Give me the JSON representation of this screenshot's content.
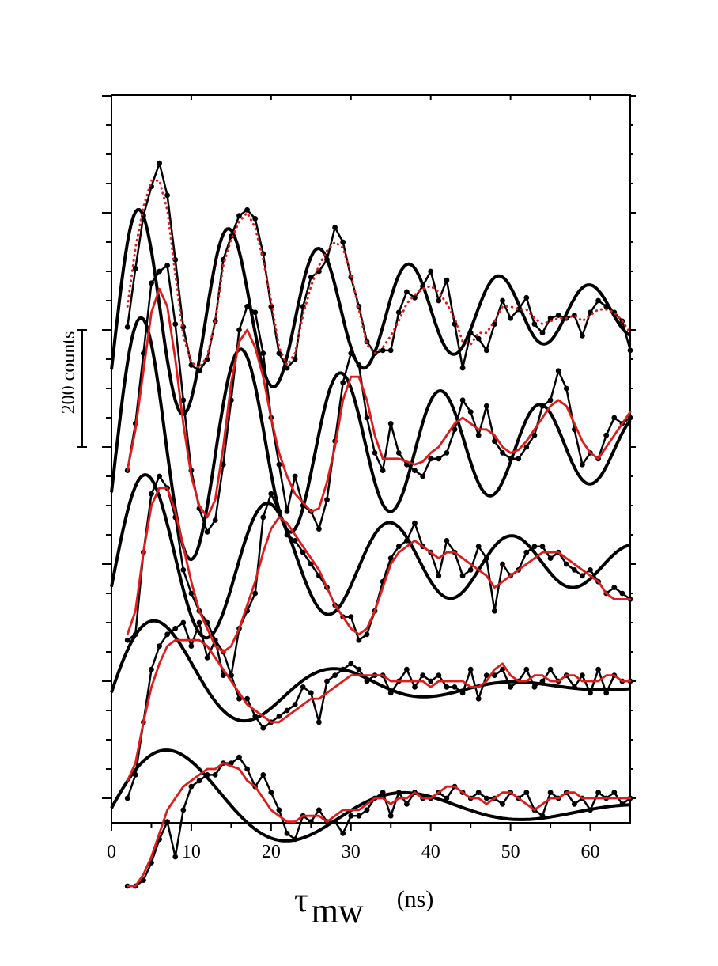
{
  "chart_data": {
    "type": "line",
    "xlabel": {
      "symbol": "τ",
      "subscript": "mw",
      "unit": "(ns)"
    },
    "xlim": [
      0,
      65
    ],
    "x_ticks": [
      0,
      10,
      20,
      30,
      40,
      50,
      60
    ],
    "scale_bar": {
      "label": "200 counts",
      "value": 200
    },
    "offset_between_traces": 200,
    "y_minor_tick_spacing": 50,
    "grid": false,
    "legend": "none",
    "colors": {
      "data": "#000000",
      "smoothed": "#e01b1b",
      "fit": "#000000"
    },
    "series": [
      {
        "trace": 1,
        "baseline": 800,
        "smoothed_style": "dotted",
        "data_x": [
          2,
          3,
          4,
          5,
          6,
          7,
          8,
          9,
          10,
          11,
          12,
          13,
          14,
          15,
          16,
          17,
          18,
          19,
          20,
          21,
          22,
          23,
          24,
          25,
          26,
          27,
          28,
          29,
          30,
          31,
          32,
          33,
          34,
          35,
          36,
          37,
          38,
          39,
          40,
          41,
          42,
          43,
          44,
          45,
          46,
          47,
          48,
          49,
          50,
          51,
          52,
          53,
          54,
          55,
          56,
          57,
          58,
          59,
          60,
          61,
          62,
          63,
          64,
          65
        ],
        "data_y": [
          5,
          105,
          195,
          245,
          285,
          230,
          120,
          5,
          -60,
          -70,
          -50,
          15,
          120,
          160,
          195,
          205,
          190,
          130,
          40,
          -40,
          -65,
          -50,
          40,
          90,
          100,
          120,
          175,
          150,
          90,
          40,
          -20,
          -40,
          -35,
          -35,
          30,
          65,
          55,
          75,
          100,
          50,
          85,
          10,
          -65,
          -5,
          -15,
          -35,
          10,
          50,
          20,
          35,
          55,
          10,
          -5,
          20,
          25,
          20,
          25,
          -10,
          30,
          50,
          40,
          30,
          15,
          -35
        ],
        "smoothed_y": [
          40,
          140,
          210,
          255,
          255,
          205,
          95,
          -10,
          -55,
          -65,
          -45,
          15,
          110,
          155,
          185,
          200,
          175,
          120,
          50,
          -30,
          -60,
          -40,
          25,
          75,
          110,
          135,
          150,
          140,
          95,
          35,
          -25,
          -40,
          -30,
          -10,
          15,
          45,
          60,
          70,
          75,
          65,
          45,
          20,
          -20,
          -25,
          -5,
          -5,
          15,
          40,
          40,
          35,
          35,
          20,
          10,
          15,
          20,
          20,
          25,
          15,
          25,
          35,
          35,
          30,
          15,
          -5
        ]
      },
      {
        "trace": 2,
        "baseline": 600,
        "smoothed_style": "solid",
        "data_x": [
          2,
          3,
          4,
          5,
          6,
          7,
          8,
          9,
          10,
          11,
          12,
          13,
          14,
          15,
          16,
          17,
          18,
          19,
          20,
          21,
          22,
          23,
          24,
          25,
          26,
          27,
          28,
          29,
          30,
          31,
          32,
          33,
          34,
          35,
          36,
          37,
          38,
          39,
          40,
          41,
          42,
          43,
          44,
          45,
          46,
          47,
          48,
          49,
          50,
          51,
          52,
          53,
          54,
          55,
          56,
          57,
          58,
          59,
          60,
          61,
          62,
          63,
          64,
          65
        ],
        "data_y": [
          -40,
          40,
          160,
          280,
          300,
          310,
          210,
          80,
          -40,
          -105,
          -145,
          -125,
          -30,
          80,
          200,
          240,
          230,
          160,
          50,
          -30,
          -110,
          -50,
          -100,
          -110,
          -140,
          -90,
          10,
          110,
          160,
          140,
          50,
          -10,
          -40,
          40,
          -10,
          -30,
          -40,
          -50,
          -20,
          -20,
          -10,
          30,
          80,
          60,
          20,
          70,
          10,
          -10,
          -20,
          -20,
          0,
          20,
          70,
          80,
          130,
          100,
          30,
          -30,
          -10,
          -20,
          20,
          50,
          40,
          50
        ],
        "smoothed_y": [
          -40,
          30,
          130,
          230,
          270,
          240,
          150,
          40,
          -50,
          -100,
          -120,
          -90,
          0,
          110,
          180,
          200,
          170,
          120,
          50,
          -10,
          -50,
          -80,
          -95,
          -110,
          -105,
          -60,
          0,
          80,
          120,
          120,
          80,
          20,
          -20,
          -20,
          -20,
          -25,
          -30,
          -25,
          -10,
          0,
          20,
          40,
          50,
          40,
          30,
          30,
          20,
          0,
          -10,
          -5,
          10,
          30,
          50,
          70,
          80,
          70,
          40,
          10,
          -10,
          -20,
          0,
          20,
          40,
          60
        ]
      },
      {
        "trace": 3,
        "baseline": 400,
        "smoothed_style": "solid",
        "data_x": [
          2,
          3,
          4,
          5,
          6,
          7,
          8,
          9,
          10,
          11,
          12,
          13,
          14,
          15,
          16,
          17,
          18,
          19,
          20,
          21,
          22,
          23,
          24,
          25,
          26,
          27,
          28,
          29,
          30,
          31,
          32,
          33,
          34,
          35,
          36,
          37,
          38,
          39,
          40,
          41,
          42,
          43,
          44,
          45,
          46,
          47,
          48,
          49,
          50,
          51,
          52,
          53,
          54,
          55,
          56,
          57,
          58,
          59,
          60,
          61,
          62,
          63,
          64,
          65
        ],
        "data_y": [
          -130,
          -120,
          20,
          120,
          150,
          130,
          80,
          -10,
          -50,
          -80,
          -100,
          -130,
          -150,
          -190,
          -110,
          -80,
          -50,
          80,
          120,
          90,
          50,
          40,
          20,
          0,
          -20,
          -40,
          -70,
          -90,
          -90,
          -130,
          -120,
          -80,
          -30,
          10,
          30,
          40,
          70,
          30,
          20,
          -20,
          40,
          20,
          -20,
          -10,
          30,
          10,
          -80,
          0,
          -20,
          -10,
          20,
          30,
          30,
          10,
          20,
          0,
          -10,
          -20,
          -10,
          -30,
          -50,
          -40,
          -50,
          -60
        ],
        "smoothed_y": [
          -120,
          -80,
          20,
          100,
          130,
          130,
          90,
          30,
          -30,
          -80,
          -110,
          -140,
          -150,
          -140,
          -110,
          -70,
          -30,
          20,
          60,
          80,
          70,
          50,
          30,
          10,
          -10,
          -40,
          -70,
          -90,
          -110,
          -120,
          -110,
          -80,
          -40,
          0,
          20,
          30,
          40,
          30,
          20,
          10,
          20,
          20,
          10,
          0,
          -10,
          -20,
          -40,
          -30,
          -20,
          -10,
          0,
          10,
          20,
          20,
          20,
          10,
          0,
          -10,
          -20,
          -30,
          -50,
          -60,
          -60,
          -60
        ]
      },
      {
        "trace": 4,
        "baseline": 200,
        "smoothed_style": "solid",
        "data_x": [
          2,
          3,
          4,
          5,
          6,
          7,
          8,
          9,
          10,
          11,
          12,
          13,
          14,
          15,
          16,
          17,
          18,
          19,
          20,
          21,
          22,
          23,
          24,
          25,
          26,
          27,
          28,
          29,
          30,
          31,
          32,
          33,
          34,
          35,
          36,
          37,
          38,
          39,
          40,
          41,
          42,
          43,
          44,
          45,
          46,
          47,
          48,
          49,
          50,
          51,
          52,
          53,
          54,
          55,
          56,
          57,
          58,
          59,
          60,
          61,
          62,
          63,
          64,
          65
        ],
        "data_y": [
          -200,
          -160,
          -70,
          20,
          60,
          80,
          90,
          100,
          60,
          100,
          40,
          70,
          10,
          10,
          -30,
          -30,
          -60,
          -80,
          -70,
          -60,
          -50,
          -40,
          -10,
          -20,
          -70,
          0,
          10,
          20,
          30,
          20,
          0,
          10,
          10,
          -20,
          0,
          20,
          -10,
          10,
          0,
          10,
          -10,
          -10,
          -20,
          20,
          -30,
          10,
          10,
          20,
          -10,
          0,
          20,
          -10,
          0,
          20,
          0,
          10,
          -10,
          10,
          -20,
          20,
          -20,
          10,
          0,
          0
        ],
        "smoothed_y": [
          -170,
          -140,
          -70,
          -10,
          30,
          60,
          70,
          70,
          70,
          70,
          60,
          40,
          20,
          0,
          -20,
          -40,
          -50,
          -60,
          -70,
          -70,
          -60,
          -50,
          -40,
          -30,
          -30,
          -20,
          -10,
          0,
          10,
          10,
          10,
          10,
          10,
          0,
          0,
          0,
          0,
          0,
          -10,
          0,
          0,
          0,
          0,
          -10,
          -10,
          0,
          20,
          30,
          10,
          0,
          0,
          10,
          10,
          0,
          0,
          10,
          10,
          0,
          0,
          0,
          10,
          10,
          0,
          0
        ]
      },
      {
        "trace": 5,
        "baseline": 0,
        "smoothed_style": "solid",
        "data_x": [
          2,
          3,
          4,
          5,
          6,
          7,
          8,
          9,
          10,
          11,
          12,
          13,
          14,
          15,
          16,
          17,
          18,
          19,
          20,
          21,
          22,
          23,
          24,
          25,
          26,
          27,
          28,
          29,
          30,
          31,
          32,
          33,
          34,
          35,
          36,
          37,
          38,
          39,
          40,
          41,
          42,
          43,
          44,
          45,
          46,
          47,
          48,
          49,
          50,
          51,
          52,
          53,
          54,
          55,
          56,
          57,
          58,
          59,
          60,
          61,
          62,
          63,
          64,
          65
        ],
        "data_y": [
          -150,
          -150,
          -140,
          -110,
          -70,
          -40,
          -100,
          -20,
          20,
          30,
          40,
          40,
          60,
          60,
          70,
          50,
          20,
          40,
          10,
          -20,
          -60,
          -70,
          -30,
          -40,
          -20,
          -40,
          -40,
          -60,
          -30,
          -30,
          -20,
          0,
          10,
          -30,
          10,
          -10,
          10,
          0,
          0,
          10,
          0,
          20,
          10,
          0,
          10,
          0,
          0,
          -10,
          10,
          0,
          10,
          -20,
          -30,
          10,
          0,
          10,
          -10,
          0,
          -20,
          10,
          0,
          10,
          -10,
          0
        ],
        "smoothed_y": [
          -150,
          -150,
          -130,
          -100,
          -60,
          -20,
          0,
          20,
          30,
          40,
          50,
          50,
          60,
          55,
          50,
          30,
          20,
          0,
          -20,
          -30,
          -40,
          -40,
          -30,
          -30,
          -30,
          -40,
          -30,
          -20,
          -20,
          -20,
          -10,
          0,
          0,
          -10,
          0,
          0,
          10,
          0,
          0,
          10,
          20,
          20,
          10,
          0,
          0,
          -10,
          0,
          10,
          10,
          0,
          -10,
          -20,
          -10,
          0,
          0,
          10,
          10,
          0,
          0,
          0,
          0,
          0,
          0,
          0
        ]
      }
    ],
    "fits": [
      {
        "trace": 1,
        "baseline": 800,
        "A": 210,
        "T": 11.3,
        "phase": -1.9,
        "decay": 40,
        "floor": 30
      },
      {
        "trace": 2,
        "baseline": 600,
        "A": 240,
        "T": 12.5,
        "phase": -1.9,
        "decay": 45,
        "floor": 0
      },
      {
        "trace": 3,
        "baseline": 400,
        "A": 170,
        "T": 15.3,
        "phase": -1.8,
        "decay": 40,
        "floor": 0
      },
      {
        "trace": 4,
        "baseline": 200,
        "A": 150,
        "T": 22.5,
        "phase": -1.7,
        "decay": 18,
        "floor": -10
      },
      {
        "trace": 5,
        "baseline": 0,
        "A": 130,
        "T": 29.5,
        "phase": -1.7,
        "decay": 25,
        "floor": -20
      }
    ]
  }
}
